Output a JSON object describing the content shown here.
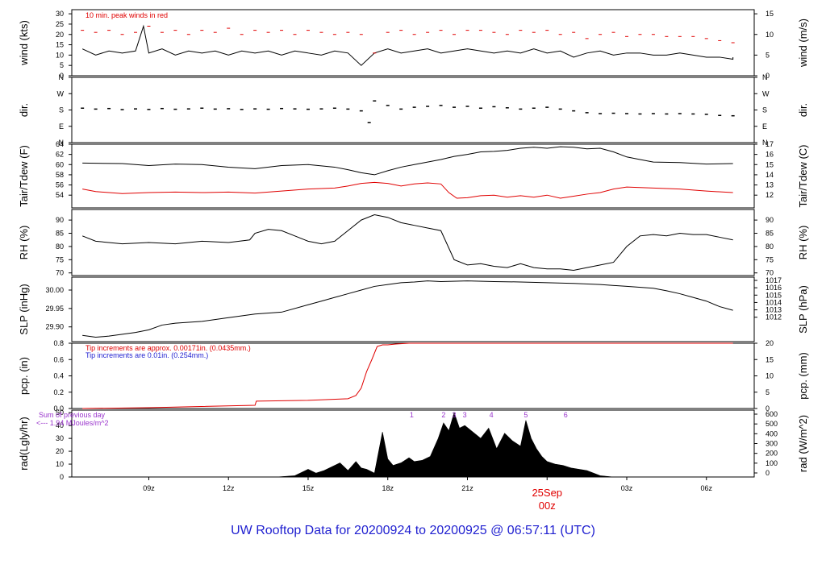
{
  "footer": {
    "prefix": "UW Rooftop Data for",
    "start": "20200924",
    "to": "to",
    "end": "20200925 @ 06:57:11",
    "utc": "(UTC)"
  },
  "colors": {
    "axis": "#000000",
    "series_black": "#000000",
    "series_red": "#e00000",
    "note_blue": "#1f1fd0",
    "note_purple": "#9933cc",
    "date_red": "#e00000"
  },
  "chart_data": [
    {
      "id": "wind",
      "type": "line",
      "ylabel": "wind (kts)",
      "ylabel_right": "wind (m/s)",
      "ylim": [
        0,
        32
      ],
      "yticks": [
        0,
        5,
        10,
        15,
        20,
        25,
        30
      ],
      "right_ticks": [
        0,
        5,
        10,
        15
      ],
      "annotation": "10 min. peak winds in red",
      "series": [
        {
          "color": "black",
          "x": [
            6.5,
            7,
            7.5,
            8,
            8.5,
            8.8,
            9,
            9.5,
            10,
            10.5,
            11,
            11.5,
            12,
            12.5,
            13,
            13.5,
            14,
            14.5,
            15,
            15.5,
            16,
            16.5,
            17,
            17.5,
            18,
            18.5,
            19,
            19.5,
            20,
            20.5,
            21,
            21.5,
            22,
            22.5,
            23,
            23.5,
            24,
            24.5,
            25,
            25.5,
            26,
            26.5,
            27,
            27.5,
            28,
            28.5,
            29,
            29.5,
            30,
            30.5,
            31,
            31
          ],
          "values": [
            13,
            10,
            12,
            11,
            12,
            24,
            11,
            13,
            10,
            12,
            11,
            12,
            10,
            12,
            11,
            12,
            10,
            12,
            11,
            10,
            12,
            11,
            5,
            11,
            13,
            11,
            12,
            13,
            11,
            12,
            13,
            12,
            11,
            12,
            11,
            13,
            11,
            12,
            9,
            11,
            12,
            10,
            11,
            11,
            10,
            10,
            11,
            10,
            9,
            9,
            8,
            9
          ]
        },
        {
          "color": "red",
          "x": [
            6.5,
            7,
            7.5,
            8,
            8.5,
            9,
            9.5,
            10,
            10.5,
            11,
            11.5,
            12,
            12.5,
            13,
            13.5,
            14,
            14.5,
            15,
            15.5,
            16,
            16.5,
            17,
            17.5,
            18,
            18.5,
            19,
            19.5,
            20,
            20.5,
            21,
            21.5,
            22,
            22.5,
            23,
            23.5,
            24,
            24.5,
            25,
            25.5,
            26,
            26.5,
            27,
            27.5,
            28,
            28.5,
            29,
            29.5,
            30,
            30.5,
            31
          ],
          "values": [
            22,
            21,
            22,
            20,
            21,
            24,
            21,
            22,
            20,
            22,
            21,
            23,
            20,
            22,
            21,
            22,
            20,
            22,
            21,
            20,
            21,
            20,
            11,
            21,
            22,
            20,
            21,
            22,
            20,
            22,
            22,
            21,
            20,
            22,
            21,
            22,
            20,
            21,
            18,
            20,
            21,
            19,
            20,
            20,
            19,
            19,
            19,
            18,
            17,
            16
          ]
        }
      ]
    },
    {
      "id": "dir",
      "type": "scatter",
      "ylabel": "dir.",
      "ylabel_right": "dir.",
      "ylim": [
        0,
        360
      ],
      "ytick_labels": [
        "N",
        "E",
        "S",
        "W",
        "N"
      ],
      "series": [
        {
          "color": "black",
          "x": [
            6.5,
            7,
            7.5,
            8,
            8.5,
            9,
            9.5,
            10,
            10.5,
            11,
            11.5,
            12,
            12.5,
            13,
            13.5,
            14,
            14.5,
            15,
            15.5,
            16,
            16.5,
            17,
            17.3,
            17.5,
            18,
            18.5,
            19,
            19.5,
            20,
            20.5,
            21,
            21.5,
            22,
            22.5,
            23,
            23.5,
            24,
            24.5,
            25,
            25.5,
            26,
            26.5,
            27,
            27.5,
            28,
            28.5,
            29,
            29.5,
            30,
            30.5,
            31
          ],
          "values": [
            190,
            185,
            188,
            182,
            186,
            183,
            188,
            184,
            186,
            190,
            185,
            187,
            183,
            186,
            184,
            188,
            186,
            184,
            186,
            190,
            185,
            175,
            110,
            230,
            205,
            185,
            195,
            200,
            205,
            195,
            200,
            190,
            198,
            192,
            185,
            190,
            195,
            185,
            175,
            165,
            160,
            162,
            160,
            158,
            160,
            158,
            160,
            158,
            156,
            150,
            148
          ]
        }
      ]
    },
    {
      "id": "temp",
      "type": "line",
      "ylabel": "Tair/Tdew (F)",
      "ylabel_right": "Tair/Tdew (C)",
      "ylim": [
        51.5,
        64
      ],
      "yticks": [
        54,
        56,
        58,
        60,
        62,
        64
      ],
      "right_ticks": [
        12,
        13,
        14,
        15,
        16,
        17
      ],
      "series": [
        {
          "color": "black",
          "x": [
            6.5,
            8,
            9,
            10,
            11,
            12,
            13,
            14,
            15,
            16,
            16.5,
            17,
            17.5,
            18,
            18.5,
            19,
            19.5,
            20,
            20.5,
            21,
            21.5,
            22,
            22.5,
            23,
            23.5,
            24,
            24.5,
            25,
            25.5,
            26,
            26.5,
            27,
            27.5,
            28,
            29,
            30,
            31
          ],
          "values": [
            60.3,
            60.2,
            59.8,
            60.1,
            60,
            59.5,
            59.2,
            59.8,
            60,
            59.5,
            59,
            58.4,
            58,
            58.8,
            59.5,
            60,
            60.5,
            61,
            61.6,
            62,
            62.5,
            62.6,
            62.8,
            63.2,
            63.4,
            63.2,
            63.5,
            63.4,
            63.1,
            63.2,
            62.5,
            61.5,
            61,
            60.5,
            60.4,
            60.1,
            60.2
          ]
        },
        {
          "color": "red",
          "x": [
            6.5,
            7,
            8,
            9,
            10,
            11,
            12,
            13,
            14,
            15,
            16,
            16.5,
            17,
            17.5,
            18,
            18.5,
            19,
            19.5,
            20,
            20.3,
            20.6,
            21,
            21.5,
            22,
            22.5,
            23,
            23.5,
            24,
            24.5,
            25,
            25.5,
            26,
            26.5,
            27,
            27.5,
            28,
            29,
            30,
            31
          ],
          "values": [
            55.2,
            54.7,
            54.3,
            54.5,
            54.6,
            54.5,
            54.6,
            54.4,
            54.8,
            55.2,
            55.4,
            55.8,
            56.3,
            56.5,
            56.3,
            55.8,
            56.2,
            56.4,
            56.2,
            54.5,
            53.4,
            53.5,
            53.9,
            54,
            53.6,
            53.9,
            53.6,
            54,
            53.4,
            53.8,
            54.2,
            54.5,
            55.2,
            55.6,
            55.5,
            55.4,
            55.2,
            54.8,
            54.5
          ]
        }
      ]
    },
    {
      "id": "rh",
      "type": "line",
      "ylabel": "RH (%)",
      "ylabel_right": "RH (%)",
      "ylim": [
        69,
        94
      ],
      "yticks": [
        70,
        75,
        80,
        85,
        90
      ],
      "right_ticks": [
        70,
        75,
        80,
        85,
        90
      ],
      "series": [
        {
          "color": "black",
          "x": [
            6.5,
            7,
            8,
            9,
            10,
            11,
            12,
            12.8,
            13,
            13.5,
            14,
            14.5,
            15,
            15.5,
            16,
            16.5,
            17,
            17.5,
            18,
            18.5,
            19,
            19.5,
            20,
            20.5,
            21,
            21.5,
            22,
            22.5,
            23,
            23.5,
            24,
            24.5,
            25,
            25.5,
            26,
            26.5,
            27,
            27.5,
            28,
            28.5,
            29,
            29.5,
            30,
            30.5,
            31
          ],
          "values": [
            84,
            82,
            81,
            81.5,
            81,
            82,
            81.5,
            82.5,
            85,
            86.5,
            86,
            84,
            82,
            81,
            82,
            86,
            90,
            92,
            91,
            89,
            88,
            87,
            86,
            75,
            73,
            73.5,
            72.5,
            72,
            73.5,
            72,
            71.5,
            71.5,
            71,
            72,
            73,
            74,
            80,
            84,
            84.5,
            84,
            85,
            84.5,
            84.5,
            83.5,
            82.5
          ]
        }
      ]
    },
    {
      "id": "slp",
      "type": "line",
      "ylabel": "SLP (inHg)",
      "ylabel_right": "SLP (hPa)",
      "ylim": [
        29.86,
        30.035
      ],
      "yticks": [
        29.9,
        29.95,
        30.0
      ],
      "ytick_labels": [
        "29.90",
        "29.95",
        "30.00"
      ],
      "right_ticks": [
        1012,
        1013,
        1014,
        1015,
        1016,
        1017
      ],
      "series": [
        {
          "color": "black",
          "x": [
            6.5,
            7,
            7.5,
            8,
            8.5,
            9,
            9.5,
            10,
            11,
            12,
            13,
            14,
            15,
            15.5,
            16,
            16.5,
            17,
            17.5,
            18,
            18.5,
            19,
            19.5,
            20,
            21,
            22,
            23,
            24,
            25,
            26,
            27,
            28,
            28.5,
            29,
            29.5,
            30,
            30.5,
            31
          ],
          "values": [
            29.877,
            29.872,
            29.875,
            29.88,
            29.885,
            29.892,
            29.905,
            29.91,
            29.915,
            29.925,
            29.935,
            29.94,
            29.96,
            29.97,
            29.98,
            29.99,
            30.0,
            30.01,
            30.015,
            30.02,
            30.022,
            30.025,
            30.023,
            30.025,
            30.023,
            30.022,
            30.02,
            30.018,
            30.015,
            30.01,
            30.005,
            29.998,
            29.99,
            29.98,
            29.97,
            29.955,
            29.945
          ]
        }
      ]
    },
    {
      "id": "pcp",
      "type": "area",
      "ylabel": "pcp. (in)",
      "ylabel_right": "pcp. (mm)",
      "ylim": [
        0,
        0.8
      ],
      "yticks": [
        0,
        0.2,
        0.4,
        0.6,
        0.8
      ],
      "ytick_labels": [
        "0.0",
        "0.2",
        "0.4",
        "0.6",
        "0.8"
      ],
      "right_ticks": [
        0,
        5,
        10,
        15,
        20
      ],
      "annotations": [
        "Tip increments are approx. 0.00171in. (0.0435mm.)",
        "Tip increments are 0.01in. (0.254mm.)"
      ],
      "series": [
        {
          "color": "red",
          "x": [
            6.5,
            9,
            13,
            13.05,
            15,
            16.5,
            16.8,
            17,
            17.2,
            17.4,
            17.6,
            17.8,
            18,
            18.3,
            18.8,
            19.3,
            31
          ],
          "values": [
            0,
            0.01,
            0.04,
            0.09,
            0.1,
            0.12,
            0.16,
            0.25,
            0.45,
            0.6,
            0.76,
            0.78,
            0.78,
            0.79,
            0.8,
            0.8,
            0.8
          ]
        }
      ]
    },
    {
      "id": "rad",
      "type": "area",
      "ylabel": "rad(Lgly/hr)",
      "ylabel_right": "rad (W/m^2)",
      "ylim": [
        0,
        52
      ],
      "yticks": [
        0,
        10,
        20,
        30,
        40,
        50
      ],
      "right_ticks": [
        0,
        100,
        200,
        300,
        400,
        500,
        600
      ],
      "annotations": [
        "Sum of previous day",
        "<--- 1.94 MJoules/m^2"
      ],
      "hour_markers": [
        "1",
        "2",
        "3",
        "3",
        "4",
        "5",
        "6"
      ],
      "hour_marker_x": [
        18.9,
        20.1,
        20.5,
        20.9,
        21.9,
        23.2,
        24.7
      ],
      "series": [
        {
          "color": "black",
          "x": [
            13.8,
            14.5,
            14.8,
            15.0,
            15.3,
            15.6,
            15.9,
            16.2,
            16.5,
            16.8,
            17.0,
            17.2,
            17.5,
            17.8,
            18.0,
            18.2,
            18.5,
            18.8,
            19.0,
            19.3,
            19.6,
            19.9,
            20.1,
            20.3,
            20.5,
            20.7,
            20.9,
            21.2,
            21.5,
            21.8,
            22.1,
            22.4,
            22.7,
            23.0,
            23.2,
            23.4,
            23.6,
            23.8,
            24.0,
            24.3,
            24.6,
            24.9,
            25.2,
            25.5,
            26.0,
            26.5
          ],
          "values": [
            0,
            1,
            4,
            6,
            3,
            5,
            8,
            11,
            5,
            12,
            7,
            6,
            3,
            35,
            14,
            9,
            11,
            15,
            12,
            13,
            16,
            30,
            42,
            36,
            50,
            38,
            40,
            35,
            30,
            38,
            22,
            34,
            28,
            24,
            44,
            30,
            22,
            16,
            12,
            10,
            9,
            7,
            6,
            5,
            1,
            0
          ]
        }
      ]
    }
  ],
  "x_axis": {
    "tick_labels": [
      "09z",
      "12z",
      "15z",
      "18z",
      "21z",
      "00z",
      "03z",
      "06z"
    ],
    "tick_values": [
      9,
      12,
      15,
      18,
      21,
      24,
      27,
      30
    ],
    "date_label": "25Sep",
    "date_sublabel": "00z",
    "xlim": [
      6.1,
      31.8
    ]
  }
}
